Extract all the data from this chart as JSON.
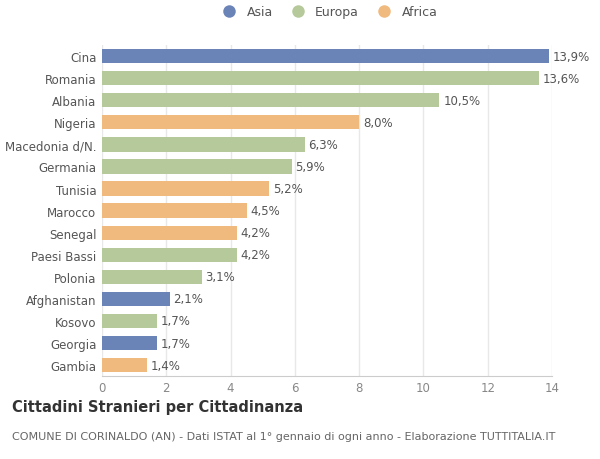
{
  "countries": [
    "Cina",
    "Romania",
    "Albania",
    "Nigeria",
    "Macedonia d/N.",
    "Germania",
    "Tunisia",
    "Marocco",
    "Senegal",
    "Paesi Bassi",
    "Polonia",
    "Afghanistan",
    "Kosovo",
    "Georgia",
    "Gambia"
  ],
  "values": [
    13.9,
    13.6,
    10.5,
    8.0,
    6.3,
    5.9,
    5.2,
    4.5,
    4.2,
    4.2,
    3.1,
    2.1,
    1.7,
    1.7,
    1.4
  ],
  "labels": [
    "13,9%",
    "13,6%",
    "10,5%",
    "8,0%",
    "6,3%",
    "5,9%",
    "5,2%",
    "4,5%",
    "4,2%",
    "4,2%",
    "3,1%",
    "2,1%",
    "1,7%",
    "1,7%",
    "1,4%"
  ],
  "continents": [
    "Asia",
    "Europa",
    "Europa",
    "Africa",
    "Europa",
    "Europa",
    "Africa",
    "Africa",
    "Africa",
    "Europa",
    "Europa",
    "Asia",
    "Europa",
    "Asia",
    "Africa"
  ],
  "colors": {
    "Asia": "#6b84b8",
    "Europa": "#b5c99a",
    "Africa": "#f0b97d"
  },
  "legend_order": [
    "Asia",
    "Europa",
    "Africa"
  ],
  "xlim": [
    0,
    14
  ],
  "xticks": [
    0,
    2,
    4,
    6,
    8,
    10,
    12,
    14
  ],
  "title": "Cittadini Stranieri per Cittadinanza",
  "subtitle": "COMUNE DI CORINALDO (AN) - Dati ISTAT al 1° gennaio di ogni anno - Elaborazione TUTTITALIA.IT",
  "background_color": "#ffffff",
  "bar_height": 0.65,
  "grid_color": "#e8e8e8",
  "label_fontsize": 8.5,
  "ytick_fontsize": 8.5,
  "xtick_fontsize": 8.5,
  "title_fontsize": 10.5,
  "subtitle_fontsize": 8.0
}
